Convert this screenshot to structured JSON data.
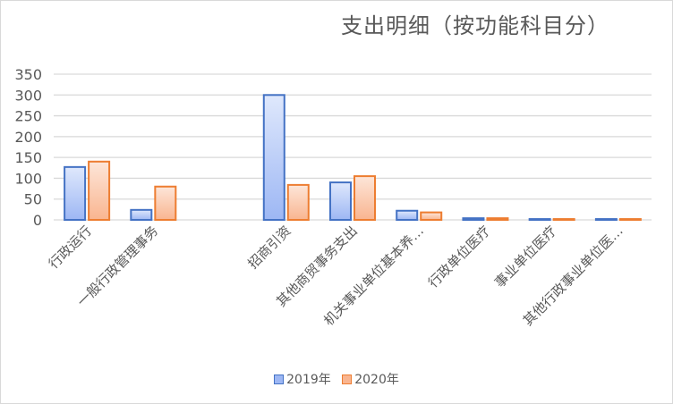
{
  "chart_data": {
    "type": "bar",
    "title": "支出明细（按功能科目分）",
    "categories": [
      "行政运行",
      "一般行政管理事务",
      "",
      "招商引资",
      "其他商贸事务支出",
      "机关事业单位基本养…",
      "行政单位医疗",
      "事业单位医疗",
      "其他行政事业单位医…"
    ],
    "series": [
      {
        "name": "2019年",
        "values": [
          127,
          24,
          0,
          300,
          90,
          22,
          4,
          2,
          2
        ],
        "color": "#4472c4",
        "fill_top": "#dfe8fc",
        "fill_bottom": "#9db7f4"
      },
      {
        "name": "2020年",
        "values": [
          140,
          80,
          0,
          84,
          105,
          18,
          4,
          2,
          2
        ],
        "color": "#ed7d31",
        "fill_top": "#fde6d9",
        "fill_bottom": "#f9b590"
      }
    ],
    "yticks": [
      0,
      50,
      100,
      150,
      200,
      250,
      300,
      350
    ],
    "ylim": [
      0,
      350
    ],
    "grid": true,
    "legend": "bottom"
  }
}
